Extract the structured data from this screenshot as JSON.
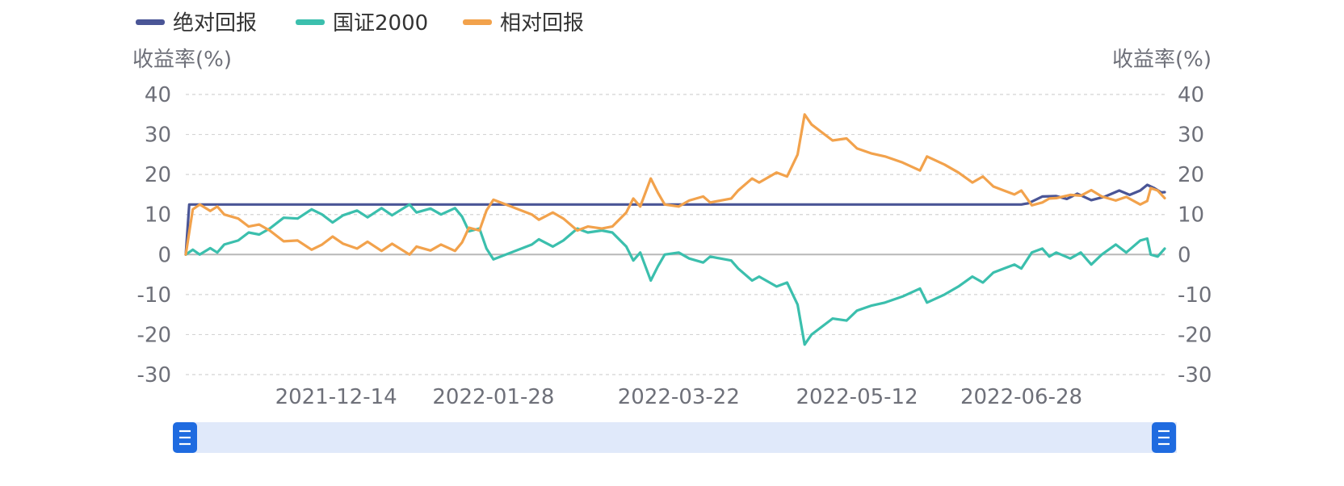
{
  "chart_data": {
    "type": "line",
    "legend": {
      "position": "top-left",
      "items": [
        {
          "name": "绝对回报",
          "color": "#4a5596"
        },
        {
          "name": "国证2000",
          "color": "#3bbfad"
        },
        {
          "name": "相对回报",
          "color": "#f2a24c"
        }
      ]
    },
    "y_axis_left": {
      "name": "收益率(%)",
      "min": -30,
      "max": 40,
      "ticks": [
        40,
        30,
        20,
        10,
        0,
        -10,
        -20,
        -30
      ]
    },
    "y_axis_right": {
      "name": "收益率(%)",
      "min": -30,
      "max": 40,
      "ticks": [
        40,
        30,
        20,
        10,
        0,
        -10,
        -20,
        -30
      ]
    },
    "x_axis": {
      "start": "2021-11-01",
      "end": "2022-08-08",
      "tick_labels": [
        "2021-12-14",
        "2022-01-28",
        "2022-03-22",
        "2022-05-12",
        "2022-06-28"
      ]
    },
    "grid": "dashed-horizontal",
    "series": [
      {
        "name": "绝对回报",
        "color": "#4a5596",
        "points": [
          [
            "2021-11-01",
            0
          ],
          [
            "2021-11-02",
            12.5
          ],
          [
            "2022-06-28",
            12.5
          ],
          [
            "2022-06-30",
            12.8
          ],
          [
            "2022-07-04",
            14.5
          ],
          [
            "2022-07-08",
            14.6
          ],
          [
            "2022-07-11",
            13.9
          ],
          [
            "2022-07-14",
            15.2
          ],
          [
            "2022-07-18",
            13.6
          ],
          [
            "2022-07-22",
            14.5
          ],
          [
            "2022-07-26",
            16.0
          ],
          [
            "2022-07-29",
            14.9
          ],
          [
            "2022-08-01",
            16.0
          ],
          [
            "2022-08-03",
            17.4
          ],
          [
            "2022-08-05",
            16.6
          ],
          [
            "2022-08-07",
            15.5
          ],
          [
            "2022-08-08",
            15.6
          ]
        ]
      },
      {
        "name": "国证2000",
        "color": "#3bbfad",
        "points": [
          [
            "2021-11-01",
            0
          ],
          [
            "2021-11-03",
            1.2
          ],
          [
            "2021-11-05",
            0
          ],
          [
            "2021-11-08",
            1.6
          ],
          [
            "2021-11-10",
            0.5
          ],
          [
            "2021-11-12",
            2.5
          ],
          [
            "2021-11-16",
            3.5
          ],
          [
            "2021-11-19",
            5.5
          ],
          [
            "2021-11-22",
            5.0
          ],
          [
            "2021-11-25",
            6.5
          ],
          [
            "2021-11-29",
            9.2
          ],
          [
            "2021-12-03",
            9.0
          ],
          [
            "2021-12-07",
            11.3
          ],
          [
            "2021-12-10",
            10.0
          ],
          [
            "2021-12-13",
            8.0
          ],
          [
            "2021-12-16",
            9.8
          ],
          [
            "2021-12-20",
            11.0
          ],
          [
            "2021-12-23",
            9.3
          ],
          [
            "2021-12-27",
            11.6
          ],
          [
            "2021-12-30",
            9.8
          ],
          [
            "2022-01-04",
            12.5
          ],
          [
            "2022-01-06",
            10.5
          ],
          [
            "2022-01-10",
            11.5
          ],
          [
            "2022-01-13",
            10.0
          ],
          [
            "2022-01-17",
            11.6
          ],
          [
            "2022-01-19",
            9.5
          ],
          [
            "2022-01-21",
            5.8
          ],
          [
            "2022-01-24",
            6.5
          ],
          [
            "2022-01-26",
            1.5
          ],
          [
            "2022-01-28",
            -1.2
          ],
          [
            "2022-02-08",
            2.5
          ],
          [
            "2022-02-10",
            3.8
          ],
          [
            "2022-02-14",
            2.0
          ],
          [
            "2022-02-17",
            3.5
          ],
          [
            "2022-02-21",
            6.5
          ],
          [
            "2022-02-24",
            5.5
          ],
          [
            "2022-02-28",
            6.0
          ],
          [
            "2022-03-03",
            5.5
          ],
          [
            "2022-03-07",
            2.0
          ],
          [
            "2022-03-09",
            -1.5
          ],
          [
            "2022-03-11",
            0.5
          ],
          [
            "2022-03-14",
            -6.5
          ],
          [
            "2022-03-16",
            -3.0
          ],
          [
            "2022-03-18",
            0.0
          ],
          [
            "2022-03-22",
            0.5
          ],
          [
            "2022-03-25",
            -1.0
          ],
          [
            "2022-03-29",
            -2.0
          ],
          [
            "2022-03-31",
            -0.5
          ],
          [
            "2022-04-06",
            -1.5
          ],
          [
            "2022-04-08",
            -3.5
          ],
          [
            "2022-04-12",
            -6.5
          ],
          [
            "2022-04-14",
            -5.5
          ],
          [
            "2022-04-19",
            -8.0
          ],
          [
            "2022-04-22",
            -7.0
          ],
          [
            "2022-04-25",
            -12.5
          ],
          [
            "2022-04-27",
            -22.5
          ],
          [
            "2022-04-29",
            -20.0
          ],
          [
            "2022-05-05",
            -16.0
          ],
          [
            "2022-05-09",
            -16.5
          ],
          [
            "2022-05-12",
            -14.0
          ],
          [
            "2022-05-16",
            -12.8
          ],
          [
            "2022-05-20",
            -12.0
          ],
          [
            "2022-05-25",
            -10.5
          ],
          [
            "2022-05-30",
            -8.5
          ],
          [
            "2022-06-01",
            -12.0
          ],
          [
            "2022-06-06",
            -10.0
          ],
          [
            "2022-06-10",
            -8.0
          ],
          [
            "2022-06-14",
            -5.5
          ],
          [
            "2022-06-17",
            -7.0
          ],
          [
            "2022-06-20",
            -4.5
          ],
          [
            "2022-06-23",
            -3.5
          ],
          [
            "2022-06-26",
            -2.5
          ],
          [
            "2022-06-28",
            -3.5
          ],
          [
            "2022-07-01",
            0.5
          ],
          [
            "2022-07-04",
            1.5
          ],
          [
            "2022-07-06",
            -0.5
          ],
          [
            "2022-07-08",
            0.5
          ],
          [
            "2022-07-12",
            -1.0
          ],
          [
            "2022-07-15",
            0.5
          ],
          [
            "2022-07-18",
            -2.5
          ],
          [
            "2022-07-21",
            0.0
          ],
          [
            "2022-07-25",
            2.5
          ],
          [
            "2022-07-28",
            0.5
          ],
          [
            "2022-08-01",
            3.5
          ],
          [
            "2022-08-03",
            4.0
          ],
          [
            "2022-08-04",
            0.0
          ],
          [
            "2022-08-06",
            -0.5
          ],
          [
            "2022-08-08",
            1.5
          ]
        ]
      },
      {
        "name": "相对回报",
        "color": "#f2a24c",
        "points": [
          [
            "2021-11-01",
            0
          ],
          [
            "2021-11-03",
            11.3
          ],
          [
            "2021-11-05",
            12.5
          ],
          [
            "2021-11-08",
            10.9
          ],
          [
            "2021-11-10",
            12.0
          ],
          [
            "2021-11-12",
            10.0
          ],
          [
            "2021-11-16",
            9.0
          ],
          [
            "2021-11-19",
            7.0
          ],
          [
            "2021-11-22",
            7.5
          ],
          [
            "2021-11-25",
            6.0
          ],
          [
            "2021-11-29",
            3.3
          ],
          [
            "2021-12-03",
            3.5
          ],
          [
            "2021-12-07",
            1.2
          ],
          [
            "2021-12-10",
            2.5
          ],
          [
            "2021-12-13",
            4.5
          ],
          [
            "2021-12-16",
            2.7
          ],
          [
            "2021-12-20",
            1.5
          ],
          [
            "2021-12-23",
            3.2
          ],
          [
            "2021-12-27",
            0.9
          ],
          [
            "2021-12-30",
            2.7
          ],
          [
            "2022-01-04",
            0.0
          ],
          [
            "2022-01-06",
            2.0
          ],
          [
            "2022-01-10",
            1.0
          ],
          [
            "2022-01-13",
            2.5
          ],
          [
            "2022-01-17",
            0.9
          ],
          [
            "2022-01-19",
            3.0
          ],
          [
            "2022-01-21",
            6.7
          ],
          [
            "2022-01-24",
            6.0
          ],
          [
            "2022-01-26",
            11.0
          ],
          [
            "2022-01-28",
            13.7
          ],
          [
            "2022-02-08",
            10.0
          ],
          [
            "2022-02-10",
            8.7
          ],
          [
            "2022-02-14",
            10.5
          ],
          [
            "2022-02-17",
            9.0
          ],
          [
            "2022-02-21",
            6.0
          ],
          [
            "2022-02-24",
            7.0
          ],
          [
            "2022-02-28",
            6.5
          ],
          [
            "2022-03-03",
            7.0
          ],
          [
            "2022-03-07",
            10.5
          ],
          [
            "2022-03-09",
            14.0
          ],
          [
            "2022-03-11",
            12.0
          ],
          [
            "2022-03-14",
            19.0
          ],
          [
            "2022-03-16",
            15.5
          ],
          [
            "2022-03-18",
            12.5
          ],
          [
            "2022-03-22",
            12.0
          ],
          [
            "2022-03-25",
            13.5
          ],
          [
            "2022-03-29",
            14.5
          ],
          [
            "2022-03-31",
            13.0
          ],
          [
            "2022-04-06",
            14.0
          ],
          [
            "2022-04-08",
            16.0
          ],
          [
            "2022-04-12",
            19.0
          ],
          [
            "2022-04-14",
            18.0
          ],
          [
            "2022-04-19",
            20.5
          ],
          [
            "2022-04-22",
            19.5
          ],
          [
            "2022-04-25",
            25.0
          ],
          [
            "2022-04-27",
            35.0
          ],
          [
            "2022-04-29",
            32.5
          ],
          [
            "2022-05-05",
            28.5
          ],
          [
            "2022-05-09",
            29.0
          ],
          [
            "2022-05-12",
            26.5
          ],
          [
            "2022-05-16",
            25.3
          ],
          [
            "2022-05-20",
            24.5
          ],
          [
            "2022-05-25",
            23.0
          ],
          [
            "2022-05-30",
            21.0
          ],
          [
            "2022-06-01",
            24.5
          ],
          [
            "2022-06-06",
            22.5
          ],
          [
            "2022-06-10",
            20.5
          ],
          [
            "2022-06-14",
            18.0
          ],
          [
            "2022-06-17",
            19.5
          ],
          [
            "2022-06-20",
            17.0
          ],
          [
            "2022-06-23",
            16.0
          ],
          [
            "2022-06-26",
            15.0
          ],
          [
            "2022-06-28",
            16.0
          ],
          [
            "2022-07-01",
            12.3
          ],
          [
            "2022-07-04",
            13.0
          ],
          [
            "2022-07-06",
            14.0
          ],
          [
            "2022-07-08",
            14.1
          ],
          [
            "2022-07-12",
            14.9
          ],
          [
            "2022-07-15",
            14.7
          ],
          [
            "2022-07-18",
            16.1
          ],
          [
            "2022-07-21",
            14.5
          ],
          [
            "2022-07-25",
            13.5
          ],
          [
            "2022-07-28",
            14.4
          ],
          [
            "2022-08-01",
            12.5
          ],
          [
            "2022-08-03",
            13.4
          ],
          [
            "2022-08-04",
            16.6
          ],
          [
            "2022-08-06",
            16.0
          ],
          [
            "2022-08-08",
            14.1
          ]
        ]
      }
    ]
  },
  "slider": {
    "start_percent": 0,
    "end_percent": 100
  }
}
